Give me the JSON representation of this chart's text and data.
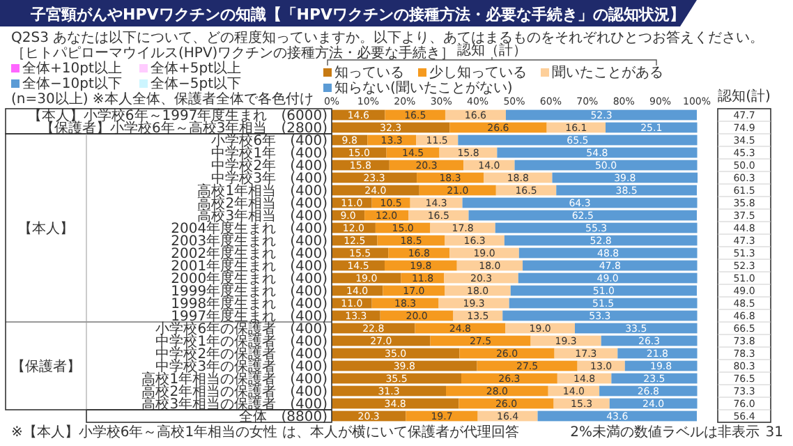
{
  "chart_data": {
    "type": "bar",
    "orientation": "horizontal",
    "stacked": true,
    "title": "子宮頸がんやHPVワクチンの知識【「HPVワクチンの接種方法・必要な手続き」の認知状況】",
    "subtitle": "Q2S3 あなたは以下について、どの程度知っていますか。以下より、あてはまるものをそれぞれひとつお答えください。",
    "legend_title": "認知（計）",
    "categories": [
      "【本人】小学校6年～1997年度生まれ　(6000)",
      "【保護者】小学校6年～高校3年相当　(2800)",
      "小学校6年　(400)",
      "中学校1年　(400)",
      "中学校2年　(400)",
      "中学校3年　(400)",
      "高校1年相当　(400)",
      "高校2年相当　(400)",
      "高校3年相当　(400)",
      "2004年度生まれ　(400)",
      "2003年度生まれ　(400)",
      "2002年度生まれ　(400)",
      "2001年度生まれ　(400)",
      "2000年度生まれ　(400)",
      "1999年度生まれ　(400)",
      "1998年度生まれ　(400)",
      "1997年度生まれ　(400)",
      "小学校6年の保護者　(400)",
      "中学校1年の保護者　(400)",
      "中学校2年の保護者　(400)",
      "中学校3年の保護者　(400)",
      "高校1年相当の保護者　(400)",
      "高校2年相当の保護者　(400)",
      "高校3年相当の保護者　(400)",
      "全体　(8800)"
    ],
    "series": [
      {
        "name": "知っている",
        "color": "#c77a12",
        "values": [
          14.6,
          32.3,
          9.8,
          15.0,
          15.8,
          23.3,
          24.0,
          11.0,
          9.0,
          12.0,
          12.5,
          15.5,
          14.5,
          19.0,
          14.0,
          11.0,
          13.3,
          22.8,
          27.0,
          35.0,
          39.8,
          35.5,
          31.3,
          34.8,
          20.3
        ],
        "value_labels": [
          "14.6",
          "32.3",
          "9.8",
          "15.0",
          "15.8",
          "23.3",
          "24.0",
          "11.0",
          "9.0",
          "12.0",
          "12.5",
          "15.5",
          "14.5",
          "19.0",
          "14.0",
          "11.0",
          "13.3",
          "22.8",
          "27.0",
          "35.0",
          "39.8",
          "35.5",
          "31.3",
          "34.8",
          "20.3"
        ]
      },
      {
        "name": "少し知っている",
        "color": "#f59a1f",
        "values": [
          16.5,
          26.6,
          13.3,
          14.5,
          20.3,
          18.3,
          21.0,
          10.5,
          12.0,
          15.0,
          18.5,
          16.8,
          19.8,
          11.8,
          17.0,
          18.3,
          20.0,
          24.8,
          27.5,
          26.0,
          27.5,
          26.3,
          28.0,
          26.0,
          19.7
        ],
        "value_labels": [
          "16.5",
          "26.6",
          "13.3",
          "14.5",
          "20.3",
          "18.3",
          "21.0",
          "10.5",
          "12.0",
          "15.0",
          "18.5",
          "16.8",
          "19.8",
          "11.8",
          "17.0",
          "18.3",
          "20.0",
          "24.8",
          "27.5",
          "26.0",
          "27.5",
          "26.3",
          "28.0",
          "26.0",
          "19.7"
        ]
      },
      {
        "name": "聞いたことがある",
        "color": "#fdcf9a",
        "values": [
          16.6,
          16.1,
          11.5,
          15.8,
          14.0,
          18.8,
          16.5,
          14.3,
          16.5,
          17.8,
          16.3,
          19.0,
          18.0,
          20.3,
          18.0,
          19.3,
          13.5,
          19.0,
          19.3,
          17.3,
          13.0,
          14.8,
          14.0,
          15.3,
          16.4
        ],
        "value_labels": [
          "16.6",
          "16.1",
          "11.5",
          "15.8",
          "14.0",
          "18.8",
          "16.5",
          "14.3",
          "16.5",
          "17.8",
          "16.3",
          "19.0",
          "18.0",
          "20.3",
          "18.0",
          "19.3",
          "13.5",
          "19.0",
          "19.3",
          "17.3",
          "13.0",
          "14.8",
          "14.0",
          "15.3",
          "16.4"
        ]
      },
      {
        "name": "知らない(聞いたことがない)",
        "color": "#5b9bd5",
        "values": [
          52.3,
          25.1,
          65.5,
          54.8,
          50.0,
          39.8,
          38.5,
          64.3,
          62.5,
          55.3,
          52.8,
          48.8,
          47.8,
          49.0,
          51.0,
          51.5,
          53.3,
          33.5,
          26.3,
          21.8,
          19.8,
          23.5,
          26.8,
          24.0,
          43.6
        ],
        "value_labels": [
          "52.3",
          "25.1",
          "65.5",
          "54.8",
          "50.0",
          "39.8",
          "38.5",
          "64.3",
          "62.5",
          "55.3",
          "52.8",
          "48.8",
          "47.8",
          "49.0",
          "51.0",
          "51.5",
          "53.3",
          "33.5",
          "26.3",
          "21.8",
          "19.8",
          "23.5",
          "26.8",
          "24.0",
          "43.6"
        ]
      }
    ],
    "xlim": [
      0,
      100
    ],
    "xticks": [
      {
        "value": 0,
        "label": "0%"
      },
      {
        "value": 10,
        "label": "10%"
      },
      {
        "value": 20,
        "label": "20%"
      },
      {
        "value": 30,
        "label": "30%"
      },
      {
        "value": 40,
        "label": "40%"
      },
      {
        "value": 50,
        "label": "50%"
      },
      {
        "value": 60,
        "label": "60%"
      },
      {
        "value": 70,
        "label": "70%"
      },
      {
        "value": 80,
        "label": "80%"
      },
      {
        "value": 90,
        "label": "90%"
      },
      {
        "value": 100,
        "label": "100%"
      }
    ],
    "legend": "top",
    "annotations": [
      "［ヒトパピローマウイルス(HPV)ワクチンの接種方法・必要な手続き］",
      "全体+10pt以上",
      "全体+5pt以上",
      "全体−10pt以下",
      "全体−5pt以下",
      "(n=30以上) ※本人全体、保護者全体で各色付け",
      "【本人】",
      "【保護者】",
      "認知(計)",
      "2%未満の数値ラベルは非表示",
      "※【本人】小学校6年～高校1年相当の女性 は、本人が横にいて保護者が代理回答",
      "31",
      "47.7",
      "74.9",
      "34.5",
      "45.3",
      "50.0",
      "60.3",
      "61.5",
      "35.8",
      "37.5",
      "44.8",
      "47.3",
      "51.3",
      "52.3",
      "51.0",
      "49.0",
      "48.5",
      "46.8",
      "66.5",
      "73.8",
      "78.3",
      "80.3",
      "76.5",
      "73.3",
      "76.0",
      "56.4"
    ]
  }
}
